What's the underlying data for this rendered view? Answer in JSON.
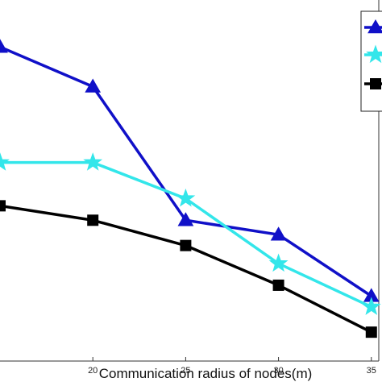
{
  "chart_data": {
    "type": "line",
    "title": "",
    "xlabel": "Communication radius of nodes(m)",
    "ylabel": "",
    "x": [
      15,
      20,
      25,
      30,
      35
    ],
    "xticks": [
      20,
      25,
      30,
      35
    ],
    "xlim": [
      15,
      35.4
    ],
    "ylim": [
      0,
      1
    ],
    "grid": false,
    "legend": "top-right",
    "series": [
      {
        "marker": "triangle",
        "color": "#1010c8",
        "values": [
          0.87,
          0.76,
          0.39,
          0.35,
          0.18
        ]
      },
      {
        "marker": "star",
        "color": "#33e6ea",
        "values": [
          0.55,
          0.55,
          0.45,
          0.27,
          0.15
        ]
      },
      {
        "marker": "square",
        "color": "#000000",
        "values": [
          0.43,
          0.39,
          0.32,
          0.21,
          0.08
        ]
      }
    ]
  }
}
